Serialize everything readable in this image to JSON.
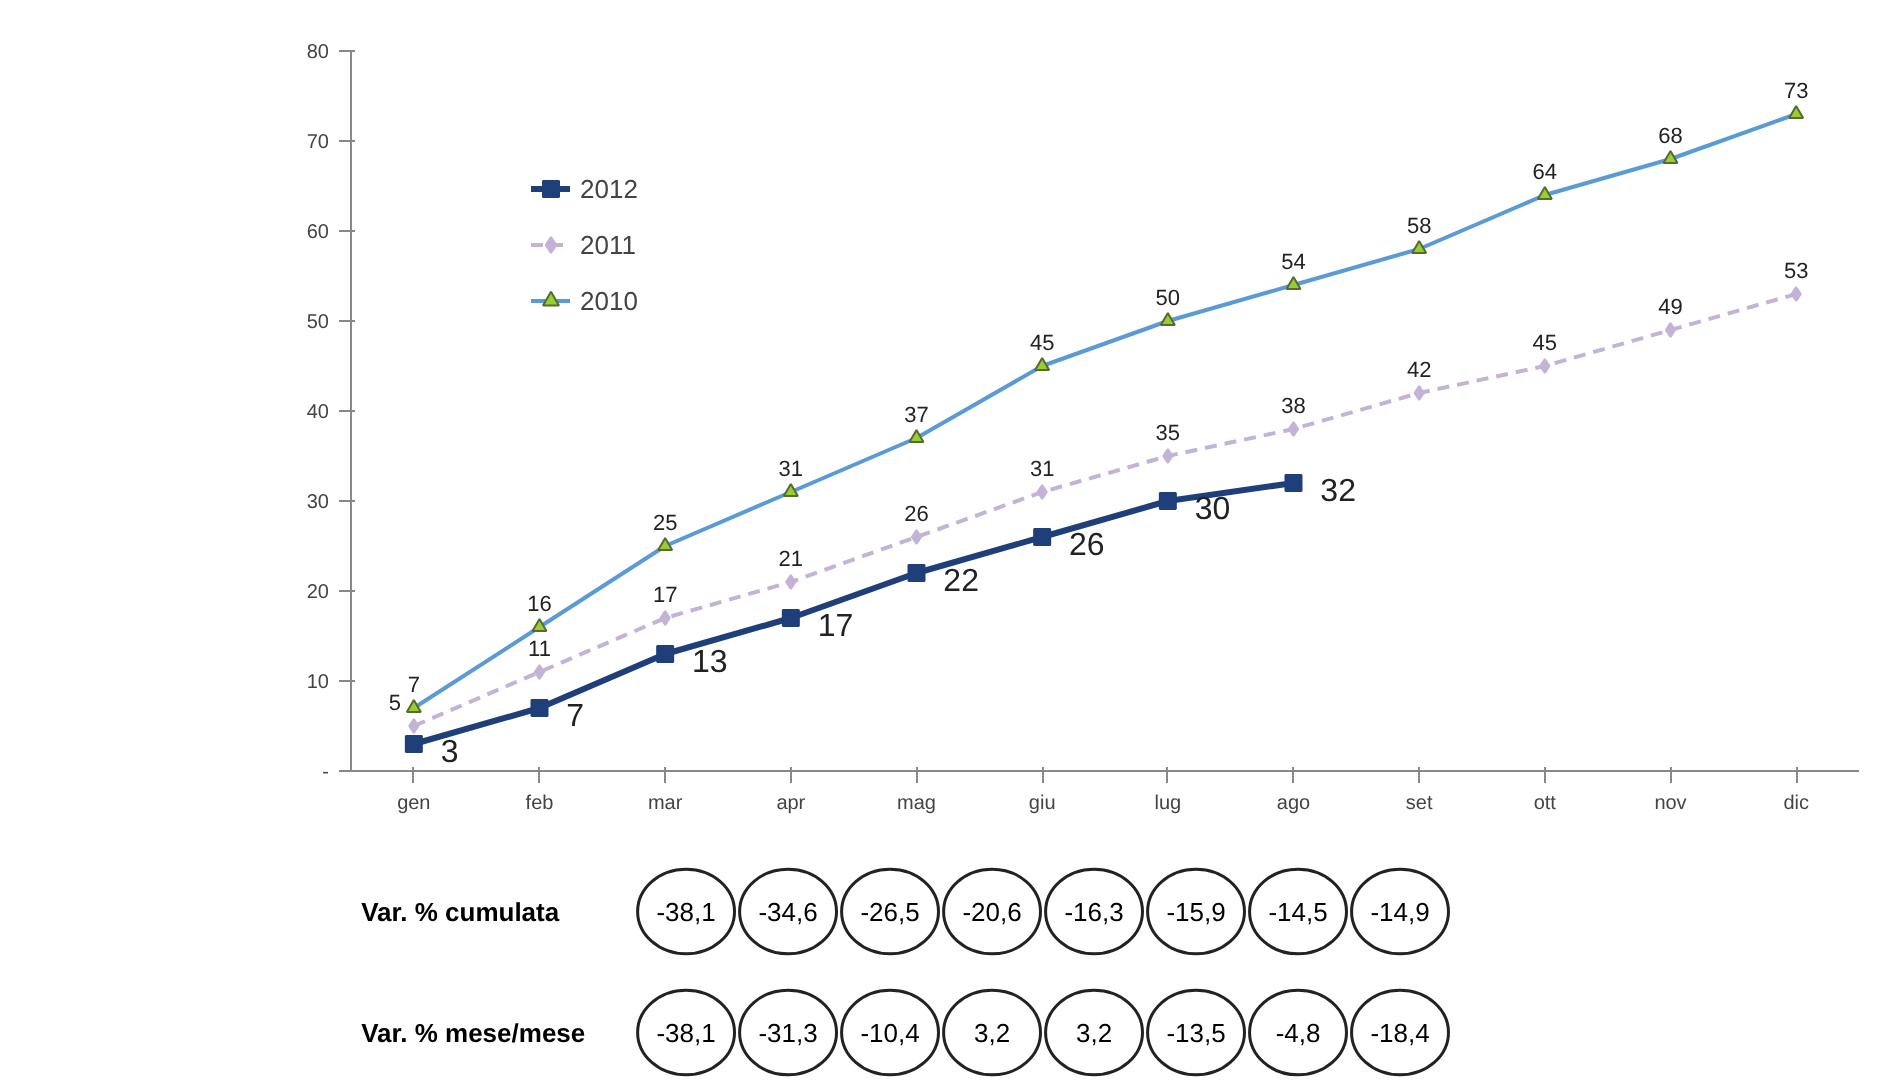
{
  "chart_data": {
    "type": "line",
    "categories": [
      "gen",
      "feb",
      "mar",
      "apr",
      "mag",
      "giu",
      "lug",
      "ago",
      "set",
      "ott",
      "nov",
      "dic"
    ],
    "series": [
      {
        "name": "2012",
        "color": "#1f3f7a",
        "marker": "square",
        "line_style": "solid",
        "values": [
          3,
          7,
          13,
          17,
          22,
          26,
          30,
          32,
          null,
          null,
          null,
          null
        ]
      },
      {
        "name": "2011",
        "color": "#c3b3d6",
        "marker": "diamond",
        "line_style": "dashed",
        "values": [
          5,
          11,
          17,
          21,
          26,
          31,
          35,
          38,
          42,
          45,
          49,
          53
        ]
      },
      {
        "name": "2010",
        "color": "#5b9bd5",
        "marker": "triangle",
        "line_style": "solid",
        "values": [
          7,
          16,
          25,
          31,
          37,
          45,
          50,
          54,
          58,
          64,
          68,
          73
        ]
      }
    ],
    "ylim": [
      0,
      80
    ],
    "yticks": [
      {
        "value": 0,
        "label": "-"
      },
      10,
      20,
      30,
      40,
      50,
      60,
      70,
      80
    ],
    "grid": false,
    "legend": "top left",
    "data_labels": true,
    "annotations": [
      "Var. % cumulata",
      "-38,1",
      "-34,6",
      "-26,5",
      "-20,6",
      "-16,3",
      "-15,9",
      "-14,5",
      "-14,9",
      "Var. % mese/mese",
      "-38,1",
      "-31,3",
      "-10,4",
      "3,2",
      "3,2",
      "-13,5",
      "-4,8",
      "-18,4"
    ]
  }
}
